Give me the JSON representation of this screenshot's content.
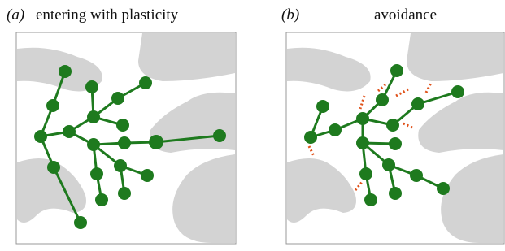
{
  "panels": [
    {
      "label": "(a)",
      "title": "entering with plasticity"
    },
    {
      "label": "(b)",
      "title": "avoidance"
    }
  ]
}
